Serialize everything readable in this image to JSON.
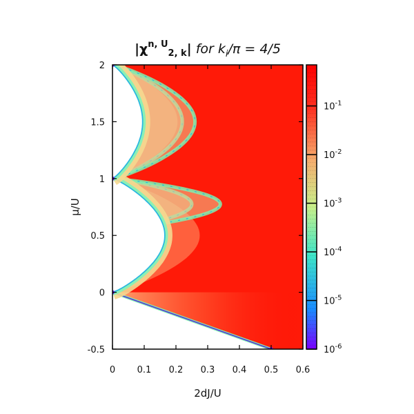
{
  "chart_data": {
    "type": "heatmap",
    "title": {
      "prefix": "|χ",
      "sup1": "n, U",
      "sub": "2, k",
      "sup2_suffix": "|",
      "italic": " for k",
      "italic_sub": "i",
      "italic_rest": "/π = 4/5"
    },
    "xlabel": "2dJ/U",
    "ylabel": "μ/U",
    "xlim": [
      0,
      0.6
    ],
    "ylim": [
      -0.5,
      2
    ],
    "xticks": [
      "0",
      "0.1",
      "0.2",
      "0.3",
      "0.4",
      "0.5",
      "0.6"
    ],
    "xtick_values": [
      0,
      0.1,
      0.2,
      0.3,
      0.4,
      0.5,
      0.6
    ],
    "yticks": [
      "-0.5",
      "0",
      "0.5",
      "1",
      "1.5",
      "2"
    ],
    "ytick_values": [
      -0.5,
      0,
      0.5,
      1,
      1.5,
      2
    ],
    "colorbar": {
      "scale": "log",
      "ticks": [
        {
          "base": "10",
          "exp": "-1",
          "value": 0.1
        },
        {
          "base": "10",
          "exp": "-2",
          "value": 0.01
        },
        {
          "base": "10",
          "exp": "-3",
          "value": 0.001
        },
        {
          "base": "10",
          "exp": "-4",
          "value": 0.0001
        },
        {
          "base": "10",
          "exp": "-5",
          "value": 1e-05
        },
        {
          "base": "10",
          "exp": "-6",
          "value": 1e-06
        }
      ],
      "range": [
        1e-06,
        0.7
      ],
      "colors": [
        "#7a00ff",
        "#1a8cff",
        "#3ee6c8",
        "#c8f08a",
        "#f5b070",
        "#ff3020",
        "#ff0000"
      ]
    },
    "mott_lobes": [
      {
        "mu_range": [
          -0.5,
          0
        ],
        "tip_x": 0.0
      },
      {
        "mu_range": [
          0,
          1
        ],
        "tip_x": 0.165,
        "tip_mu": 0.45
      },
      {
        "mu_range": [
          1,
          2
        ],
        "tip_x": 0.095,
        "tip_mu": 1.5
      }
    ],
    "secondary_arcs": [
      {
        "mu_range": [
          1,
          2
        ],
        "tip_x": 0.22,
        "tip_mu": 1.75
      },
      {
        "mu_range": [
          1,
          2
        ],
        "tip_x": 0.26,
        "tip_mu": 1.8
      },
      {
        "mu_range": [
          0.55,
          1
        ],
        "tip_x": 0.25,
        "tip_mu": 0.8
      },
      {
        "mu_range": [
          0.55,
          1
        ],
        "tip_x": 0.34,
        "tip_mu": 0.8
      }
    ],
    "grid": false,
    "legend": "colorbar-right"
  }
}
